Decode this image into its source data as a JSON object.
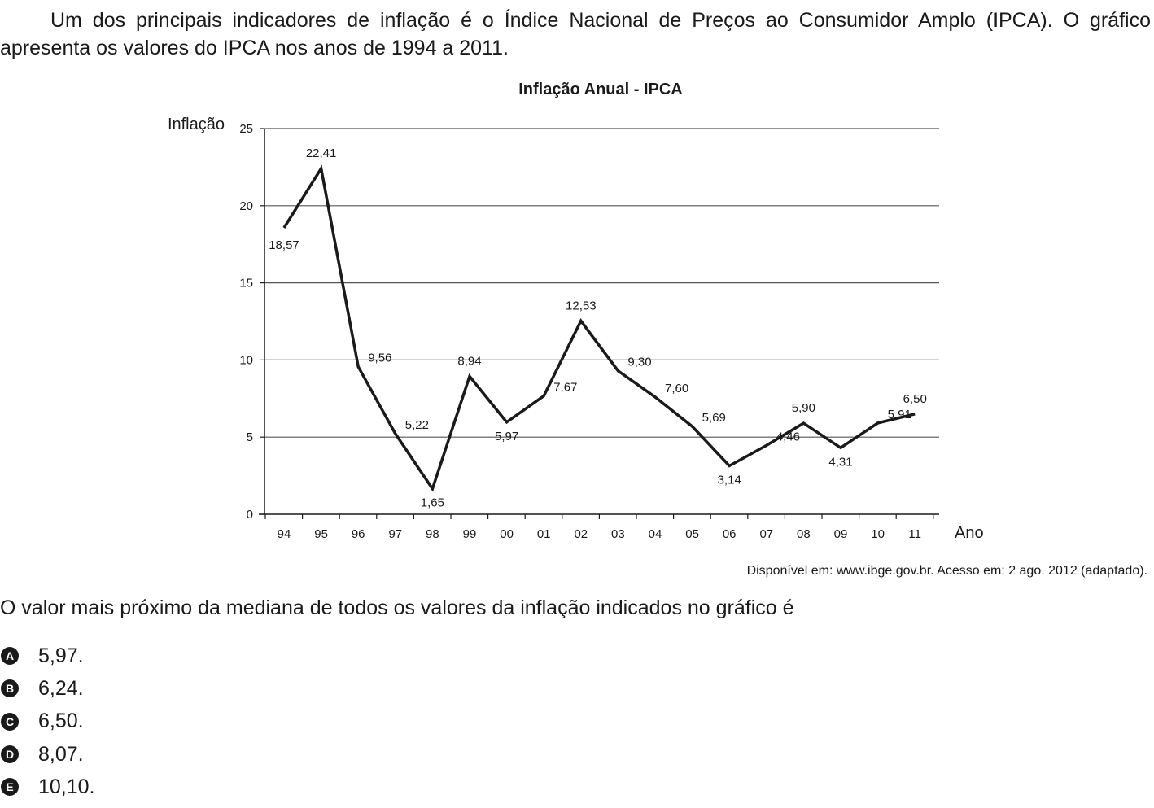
{
  "intro": "Um dos principais indicadores de inflação é o Índice Nacional de Preços ao Consumidor Amplo (IPCA). O gráfico apresenta os valores do IPCA nos anos de 1994 a 2011.",
  "source": "Disponível em: www.ibge.gov.br. Acesso em: 2 ago. 2012 (adaptado).",
  "question": "O valor mais próximo da mediana de todos os valores da inflação indicados no gráfico é",
  "options": [
    {
      "letter": "A",
      "text": "5,97."
    },
    {
      "letter": "B",
      "text": "6,24."
    },
    {
      "letter": "C",
      "text": "6,50."
    },
    {
      "letter": "D",
      "text": "8,07."
    },
    {
      "letter": "E",
      "text": "10,10."
    }
  ],
  "chart_data": {
    "type": "line",
    "title": "Inflação Anual - IPCA",
    "ylabel": "Inflação",
    "xlabel": "Ano",
    "categories": [
      "94",
      "95",
      "96",
      "97",
      "98",
      "99",
      "00",
      "01",
      "02",
      "03",
      "04",
      "05",
      "06",
      "07",
      "08",
      "09",
      "10",
      "11"
    ],
    "values": [
      18.57,
      22.41,
      9.56,
      5.22,
      1.65,
      8.94,
      5.97,
      7.67,
      12.53,
      9.3,
      7.6,
      5.69,
      3.14,
      4.46,
      5.9,
      4.31,
      5.91,
      6.5
    ],
    "value_labels": [
      "18,57",
      "22,41",
      "9,56",
      "5,22",
      "1,65",
      "8,94",
      "5,97",
      "7,67",
      "12,53",
      "9,30",
      "7,60",
      "5,69",
      "3,14",
      "4,46",
      "5,90",
      "4,31",
      "5,91",
      "6,50"
    ],
    "yticks": [
      0,
      5,
      10,
      15,
      20,
      25
    ],
    "ylim": [
      0,
      25
    ],
    "grid": true,
    "line_color": "#1a1a1a"
  }
}
